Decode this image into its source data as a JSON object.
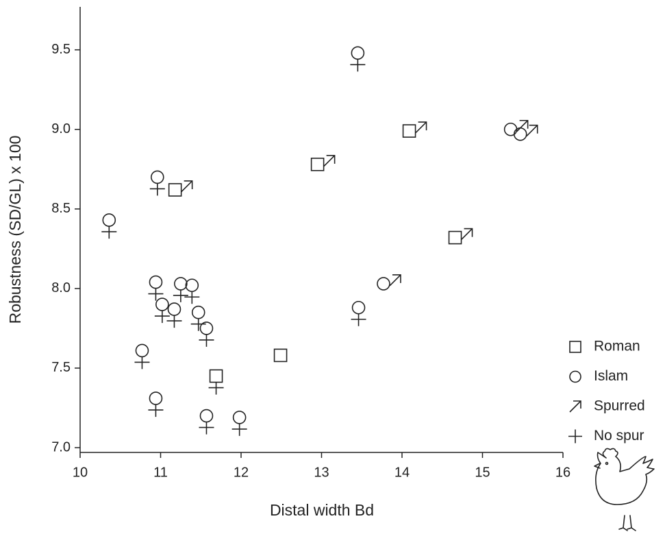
{
  "chart_data": {
    "type": "scatter",
    "x_label": "Distal width Bd",
    "y_label": "Robustness (SD/GL) x 100",
    "xlim": [
      10,
      16
    ],
    "ylim": [
      6.97,
      9.77
    ],
    "xticks": [
      10,
      11,
      12,
      13,
      14,
      15,
      16
    ],
    "yticks": [
      {
        "value": 7,
        "label": "7.0"
      },
      7.5,
      {
        "value": 8,
        "label": "8.0"
      },
      8.5,
      {
        "value": 9,
        "label": "9.0"
      },
      9.5
    ],
    "series": [
      {
        "name": "Roman",
        "marker": "square",
        "color": "#222",
        "x": [
          14.09,
          12.95,
          11.18,
          14.66,
          12.49,
          11.69
        ],
        "y": [
          8.99,
          8.78,
          8.62,
          8.32,
          7.58,
          7.45
        ]
      },
      {
        "name": "Islam",
        "marker": "circle",
        "color": "#222",
        "x": [
          13.45,
          15.35,
          15.47,
          10.96,
          10.36,
          13.77,
          10.94,
          11.25,
          11.39,
          11.02,
          11.17,
          11.47,
          11.57,
          13.46,
          10.77,
          10.94,
          11.57,
          11.98
        ],
        "y": [
          9.48,
          9.0,
          8.97,
          8.7,
          8.43,
          8.03,
          8.04,
          8.03,
          8.02,
          7.9,
          7.87,
          7.85,
          7.75,
          7.88,
          7.61,
          7.31,
          7.2,
          7.19
        ]
      },
      {
        "name": "Spurred",
        "marker": "arrow",
        "color": "#222",
        "x": [
          14.09,
          12.95,
          11.18,
          14.66,
          15.35,
          15.47,
          13.77
        ],
        "y": [
          8.99,
          8.78,
          8.62,
          8.32,
          9.0,
          8.97,
          8.03
        ]
      },
      {
        "name": "No spur",
        "marker": "plus",
        "color": "#222",
        "x": [
          13.45,
          10.96,
          10.36,
          10.94,
          11.25,
          11.39,
          11.02,
          11.17,
          11.47,
          11.57,
          13.46,
          10.77,
          10.94,
          11.57,
          11.98,
          11.69
        ],
        "y": [
          9.48,
          8.7,
          8.43,
          8.04,
          8.03,
          8.02,
          7.9,
          7.87,
          7.85,
          7.75,
          7.88,
          7.61,
          7.31,
          7.2,
          7.19,
          7.45
        ]
      }
    ]
  }
}
